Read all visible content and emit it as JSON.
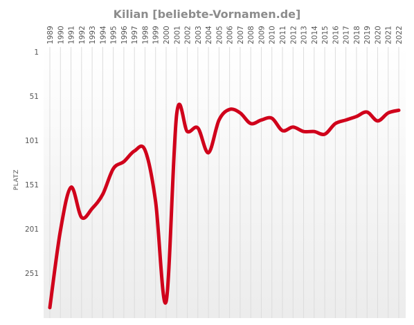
{
  "chart_data": {
    "type": "line",
    "title": "Kilian [beliebte-Vornamen.de]",
    "ylabel": "PLATZ",
    "xlabel": "",
    "y_axis_inverted": true,
    "ylim": [
      1,
      290
    ],
    "y_ticks": [
      "1",
      "51",
      "101",
      "151",
      "201",
      "251"
    ],
    "grid": "vertical",
    "legend": "none",
    "line_color": "#d0021b",
    "x": [
      "1989",
      "1990",
      "1991",
      "1992",
      "1993",
      "1994",
      "1995",
      "1996",
      "1997",
      "1998",
      "1999",
      "2000",
      "2001",
      "2002",
      "2003",
      "2004",
      "2005",
      "2006",
      "2007",
      "2008",
      "2009",
      "2010",
      "2011",
      "2012",
      "2013",
      "2014",
      "2015",
      "2016",
      "2017",
      "2018",
      "2019",
      "2020",
      "2021",
      "2022"
    ],
    "series": [
      {
        "values": [
          290,
          203,
          154,
          188,
          178,
          162,
          133,
          125,
          113,
          112,
          170,
          283,
          71,
          91,
          87,
          115,
          78,
          66,
          70,
          82,
          78,
          76,
          90,
          86,
          91,
          91,
          94,
          82,
          78,
          74,
          69,
          79,
          70,
          67
        ]
      }
    ]
  }
}
